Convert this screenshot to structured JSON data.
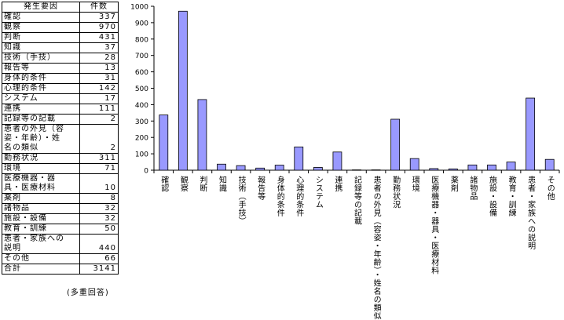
{
  "table": {
    "header": {
      "factor": "発生要因",
      "count": "件数"
    },
    "rows": [
      {
        "label": [
          "確認"
        ],
        "count": "337"
      },
      {
        "label": [
          "観察"
        ],
        "count": "970"
      },
      {
        "label": [
          "判断"
        ],
        "count": "431"
      },
      {
        "label": [
          "知識"
        ],
        "count": "37"
      },
      {
        "label": [
          "技術（手技）"
        ],
        "count": "28"
      },
      {
        "label": [
          "報告等"
        ],
        "count": "13"
      },
      {
        "label": [
          "身体的条件"
        ],
        "count": "31"
      },
      {
        "label": [
          "心理的条件"
        ],
        "count": "142"
      },
      {
        "label": [
          "システム"
        ],
        "count": "17"
      },
      {
        "label": [
          "連携"
        ],
        "count": "111"
      },
      {
        "label": [
          "記録等の記載"
        ],
        "count": "2"
      },
      {
        "label": [
          "患者の外見（容",
          "姿・年齢）・姓",
          "名の類似"
        ],
        "count": "2"
      },
      {
        "label": [
          "勤務状況"
        ],
        "count": "311"
      },
      {
        "label": [
          "環境"
        ],
        "count": "71"
      },
      {
        "label": [
          "医療機器・器",
          "具・医療材料"
        ],
        "count": "10"
      },
      {
        "label": [
          "薬剤"
        ],
        "count": "8"
      },
      {
        "label": [
          "諸物品"
        ],
        "count": "32"
      },
      {
        "label": [
          "施設・設備"
        ],
        "count": "32"
      },
      {
        "label": [
          "教育・訓練"
        ],
        "count": "50"
      },
      {
        "label": [
          "患者・家族への",
          "説明"
        ],
        "count": "440"
      },
      {
        "label": [
          "その他"
        ],
        "count": "66"
      }
    ],
    "total": {
      "label": "合計",
      "count": "3141"
    },
    "note": "(多重回答)"
  },
  "chart_data": {
    "type": "bar",
    "categories": [
      "確認",
      "観察",
      "判断",
      "知識",
      "技術（手技）",
      "報告等",
      "身体的条件",
      "心理的条件",
      "システム",
      "連携",
      "記録等の記載",
      "患者の外見（容姿・年齢）・姓名の類似",
      "勤務状況",
      "環境",
      "医療機器・器具・医療材料",
      "薬剤",
      "諸物品",
      "施設・設備",
      "教育・訓練",
      "患者・家族への説明",
      "その他"
    ],
    "values": [
      337,
      970,
      431,
      37,
      28,
      13,
      31,
      142,
      17,
      111,
      2,
      2,
      311,
      71,
      10,
      8,
      32,
      32,
      50,
      440,
      66
    ],
    "yticks": [
      "0",
      "100",
      "200",
      "300",
      "400",
      "500",
      "600",
      "700",
      "800",
      "900",
      "1000"
    ],
    "ylim": [
      0,
      1000
    ],
    "grid": false,
    "bar_color": "#9999ff",
    "title": "",
    "xlabel": "",
    "ylabel": ""
  }
}
